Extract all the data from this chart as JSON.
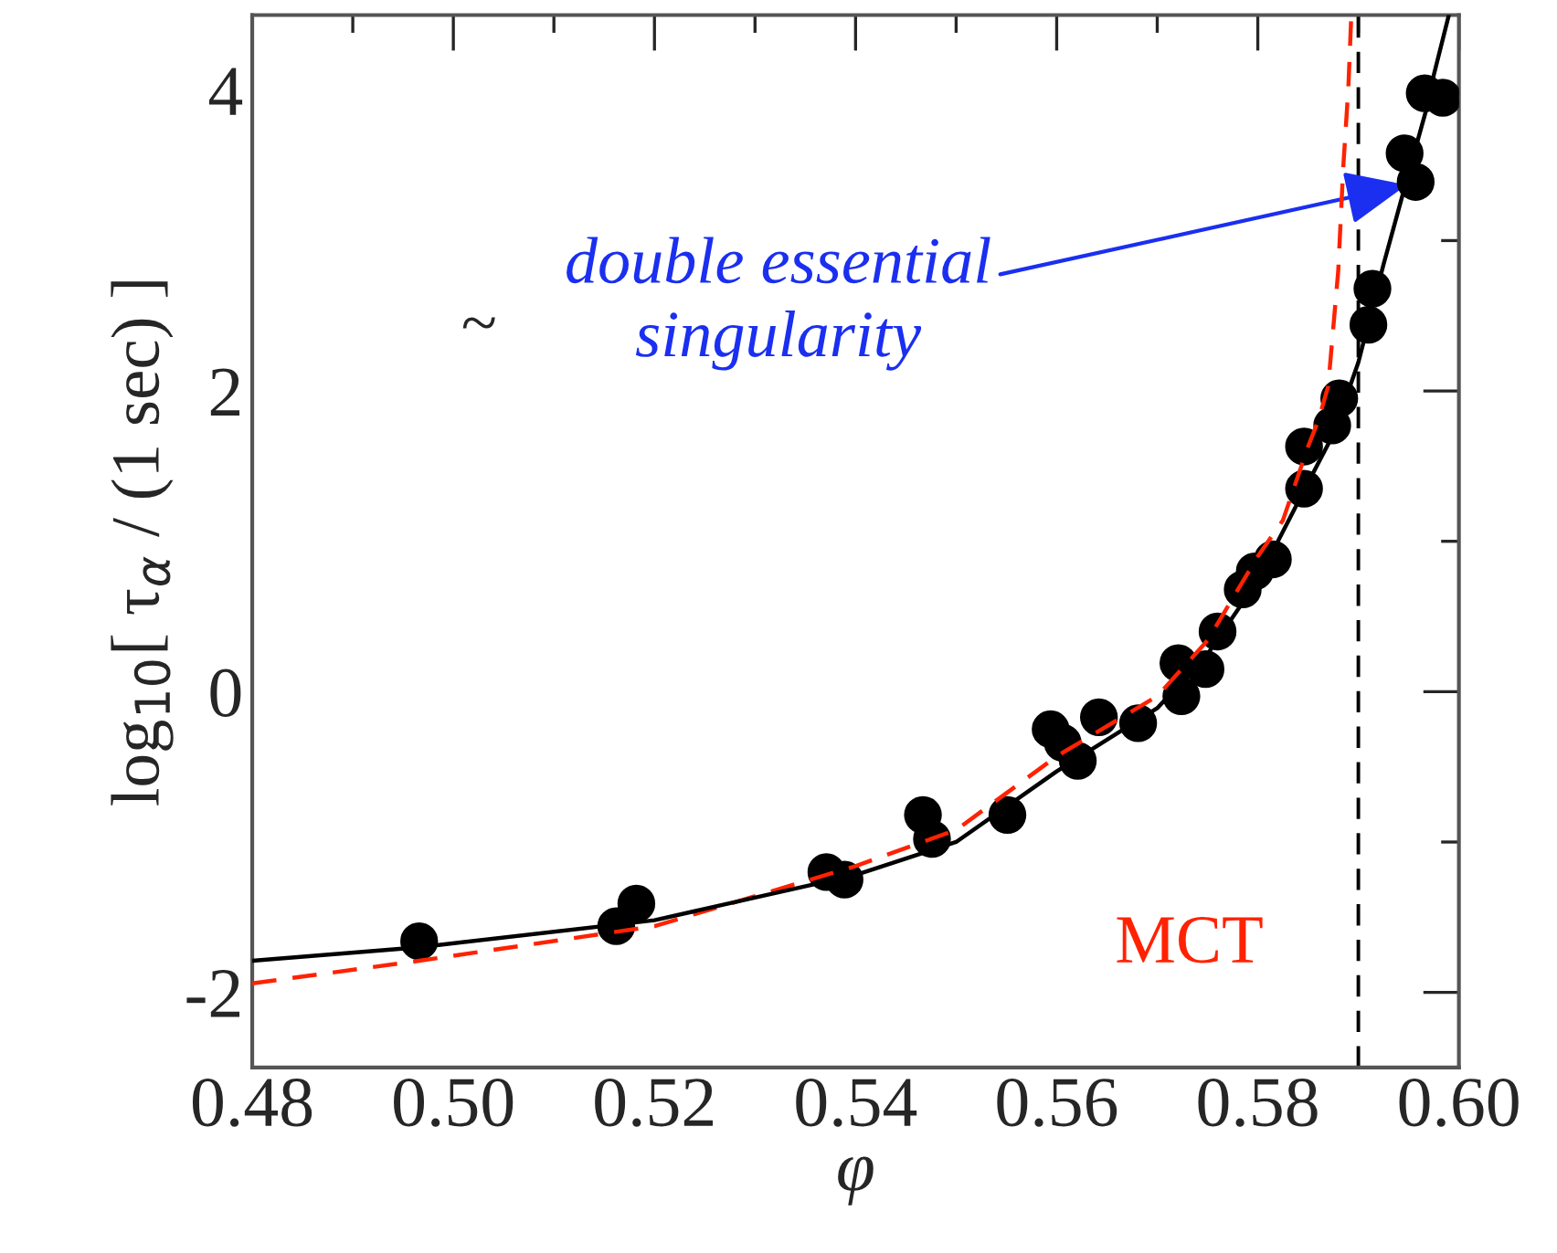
{
  "chart_data": {
    "type": "scatter",
    "xlabel": "φ",
    "ylabel": "log$_{10}$[ τ$_{α}$ / (1 sec) ]",
    "xlim": [
      0.48,
      0.6
    ],
    "xticks": [
      {
        "value": 0.48,
        "label": "0.48"
      },
      {
        "value": 0.5,
        "label": "0.50"
      },
      {
        "value": 0.52,
        "label": "0.52"
      },
      {
        "value": 0.54,
        "label": "0.54"
      },
      {
        "value": 0.56,
        "label": "0.56"
      },
      {
        "value": 0.58,
        "label": "0.58"
      },
      {
        "value": 0.6,
        "label": "0.60"
      }
    ],
    "ylim": [
      -2.5,
      4.5
    ],
    "yticks": [
      {
        "value": -2,
        "label": "-2"
      },
      0,
      2,
      4
    ],
    "grid": false,
    "legend": false,
    "ref_lines": [
      {
        "axis": "x",
        "value": 0.59,
        "color": "#000000",
        "line_style": "dashed"
      }
    ],
    "annotations": [
      "~",
      {
        "text": "double essential\nsingularity",
        "x": 0.5948,
        "y": 3.37
      }
    ],
    "series": [
      {
        "type": "line",
        "name": "MCT",
        "color": "#ff2200",
        "line_style": "dashed",
        "x": [
          0.48,
          0.4966,
          0.52,
          0.54,
          0.55,
          0.56,
          0.57,
          0.575,
          0.58,
          0.5825,
          0.585,
          0.586,
          0.587,
          0.588,
          0.5885,
          0.589,
          0.5893
        ],
        "values": [
          -1.94,
          -1.79,
          -1.56,
          -1.16,
          -0.92,
          -0.43,
          -0.03,
          0.34,
          0.9,
          1.14,
          1.63,
          1.8,
          2.03,
          2.8,
          3.49,
          4.01,
          4.5
        ]
      },
      {
        "type": "line",
        "color": "#000000",
        "line_style": "solid",
        "x": [
          0.48,
          0.4966,
          0.52,
          0.54,
          0.55,
          0.56,
          0.57,
          0.575,
          0.58,
          0.585,
          0.5875,
          0.59,
          0.5925,
          0.595,
          0.597,
          0.5975,
          0.599
        ],
        "values": [
          -1.79,
          -1.7,
          -1.52,
          -1.22,
          -1.0,
          -0.53,
          -0.11,
          0.25,
          0.74,
          1.39,
          1.71,
          2.19,
          2.84,
          3.45,
          3.93,
          4.1,
          4.5
        ]
      },
      {
        "type": "scatter",
        "color": "#000000",
        "marker": "circle",
        "x": [
          0.4966,
          0.5162,
          0.5182,
          0.5371,
          0.5389,
          0.5467,
          0.5476,
          0.5551,
          0.5594,
          0.5606,
          0.5621,
          0.5642,
          0.5681,
          0.5721,
          0.5724,
          0.5748,
          0.576,
          0.5785,
          0.5797,
          0.5815,
          0.5846,
          0.5846,
          0.5874,
          0.5881,
          0.591,
          0.5914,
          0.5946,
          0.5957,
          0.5966,
          0.5984
        ],
        "values": [
          -1.66,
          -1.56,
          -1.41,
          -1.2,
          -1.25,
          -0.82,
          -0.98,
          -0.82,
          -0.25,
          -0.34,
          -0.46,
          -0.17,
          -0.21,
          0.19,
          -0.03,
          0.15,
          0.4,
          0.68,
          0.8,
          0.88,
          1.35,
          1.63,
          1.77,
          1.95,
          2.44,
          2.68,
          3.58,
          3.39,
          3.98,
          3.95
        ]
      }
    ]
  }
}
